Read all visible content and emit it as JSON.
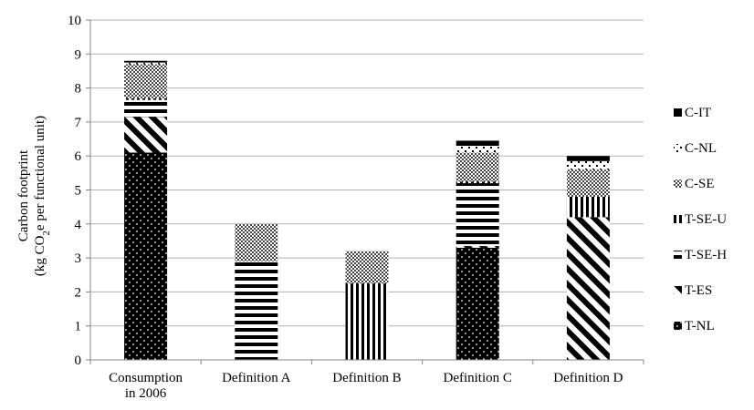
{
  "chart_data": {
    "type": "bar",
    "stacked": true,
    "ylabel_line1": "Carbon footprint",
    "ylabel_line2_prefix": "(kg CO",
    "ylabel_line2_sub": "2",
    "ylabel_line2_suffix": "e per functional unit)",
    "ylim": [
      0,
      10
    ],
    "yticks": [
      "0",
      "1",
      "2",
      "3",
      "4",
      "5",
      "6",
      "7",
      "8",
      "9",
      "10"
    ],
    "grid": true,
    "legend_position": "right",
    "categories": [
      [
        "Consumption",
        "in 2006"
      ],
      [
        "Definition A"
      ],
      [
        "Definition B"
      ],
      [
        "Definition C"
      ],
      [
        "Definition D"
      ]
    ],
    "series": [
      {
        "name": "T-NL",
        "pattern": "dots",
        "values": [
          6.1,
          0,
          0,
          3.3,
          0
        ]
      },
      {
        "name": "T-ES",
        "pattern": "diagonal",
        "values": [
          1.05,
          0,
          0,
          0.05,
          4.2
        ]
      },
      {
        "name": "T-SE-H",
        "pattern": "horizontal",
        "values": [
          0.5,
          2.9,
          0,
          1.85,
          0
        ]
      },
      {
        "name": "T-SE-U",
        "pattern": "vertical",
        "values": [
          0.05,
          0,
          2.25,
          0.05,
          0.6
        ]
      },
      {
        "name": "C-SE",
        "pattern": "checker",
        "values": [
          1.0,
          1.1,
          0.95,
          0.85,
          0.8
        ]
      },
      {
        "name": "C-NL",
        "pattern": "sparse",
        "values": [
          0.05,
          0,
          0,
          0.2,
          0.25
        ]
      },
      {
        "name": "C-IT",
        "pattern": "solid",
        "values": [
          0.05,
          0,
          0,
          0.15,
          0.15
        ]
      }
    ],
    "legend_order": [
      "C-IT",
      "C-NL",
      "C-SE",
      "T-SE-U",
      "T-SE-H",
      "T-ES",
      "T-NL"
    ]
  }
}
